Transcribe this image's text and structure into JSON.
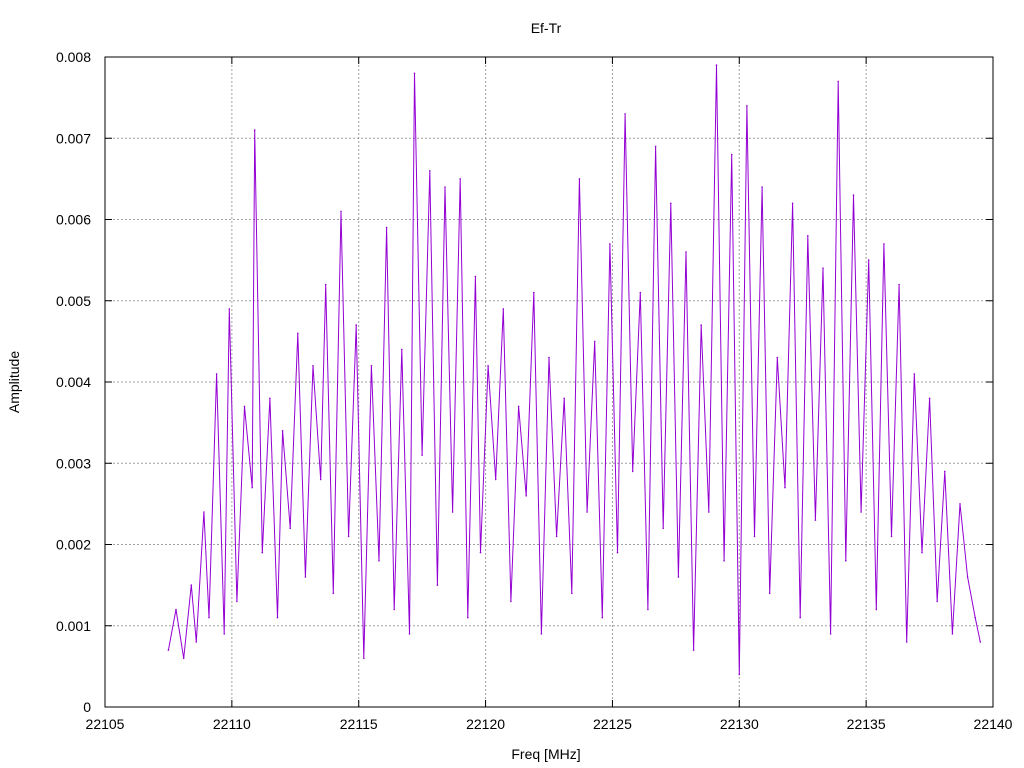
{
  "chart_data": {
    "type": "line",
    "title": "Ef-Tr",
    "xlabel": "Freq [MHz]",
    "ylabel": "Amplitude",
    "xlim": [
      22105,
      22140
    ],
    "ylim": [
      0,
      0.008
    ],
    "xticks": [
      22105,
      22110,
      22115,
      22120,
      22125,
      22130,
      22135,
      22140
    ],
    "xtick_labels": [
      "22105",
      "22110",
      "22115",
      "22120",
      "22125",
      "22130",
      "22135",
      "22140"
    ],
    "yticks": [
      0,
      0.001,
      0.002,
      0.003,
      0.004,
      0.005,
      0.006,
      0.007,
      0.008
    ],
    "ytick_labels": [
      "0",
      "0.001",
      "0.002",
      "0.003",
      "0.004",
      "0.005",
      "0.006",
      "0.007",
      "0.008"
    ],
    "grid": true,
    "legend": "none",
    "series": [
      {
        "color": "#9400d3",
        "x": [
          22107.5,
          22107.8,
          22108.1,
          22108.4,
          22108.6,
          22108.9,
          22109.1,
          22109.4,
          22109.7,
          22109.9,
          22110.2,
          22110.5,
          22110.8,
          22110.9,
          22111.2,
          22111.5,
          22111.8,
          22112.0,
          22112.3,
          22112.6,
          22112.9,
          22113.2,
          22113.5,
          22113.7,
          22114.0,
          22114.3,
          22114.6,
          22114.9,
          22115.2,
          22115.5,
          22115.8,
          22116.1,
          22116.4,
          22116.7,
          22117.0,
          22117.2,
          22117.5,
          22117.8,
          22118.1,
          22118.4,
          22118.7,
          22119.0,
          22119.3,
          22119.6,
          22119.8,
          22120.1,
          22120.4,
          22120.7,
          22121.0,
          22121.3,
          22121.6,
          22121.9,
          22122.2,
          22122.5,
          22122.8,
          22123.1,
          22123.4,
          22123.7,
          22124.0,
          22124.3,
          22124.6,
          22124.9,
          22125.2,
          22125.5,
          22125.8,
          22126.1,
          22126.4,
          22126.7,
          22127.0,
          22127.3,
          22127.6,
          22127.9,
          22128.2,
          22128.5,
          22128.8,
          22129.1,
          22129.4,
          22129.7,
          22130.0,
          22130.3,
          22130.6,
          22130.9,
          22131.2,
          22131.5,
          22131.8,
          22132.1,
          22132.4,
          22132.7,
          22133.0,
          22133.3,
          22133.6,
          22133.9,
          22134.2,
          22134.5,
          22134.8,
          22135.1,
          22135.4,
          22135.7,
          22136.0,
          22136.3,
          22136.6,
          22136.9,
          22137.2,
          22137.5,
          22137.8,
          22138.1,
          22138.4,
          22138.7,
          22139.0,
          22139.3,
          22139.5
        ],
        "values": [
          0.0007,
          0.0012,
          0.0006,
          0.0015,
          0.0008,
          0.0024,
          0.0011,
          0.0041,
          0.0009,
          0.0049,
          0.0013,
          0.0037,
          0.0027,
          0.0071,
          0.0019,
          0.0038,
          0.0011,
          0.0034,
          0.0022,
          0.0046,
          0.0016,
          0.0042,
          0.0028,
          0.0052,
          0.0014,
          0.0061,
          0.0021,
          0.0047,
          0.0006,
          0.0042,
          0.0018,
          0.0059,
          0.0012,
          0.0044,
          0.0009,
          0.0078,
          0.0031,
          0.0066,
          0.0015,
          0.0064,
          0.0024,
          0.0065,
          0.0011,
          0.0053,
          0.0019,
          0.0042,
          0.0028,
          0.0049,
          0.0013,
          0.0037,
          0.0026,
          0.0051,
          0.0009,
          0.0043,
          0.0021,
          0.0038,
          0.0014,
          0.0065,
          0.0024,
          0.0045,
          0.0011,
          0.0057,
          0.0019,
          0.0073,
          0.0029,
          0.0051,
          0.0012,
          0.0069,
          0.0022,
          0.0062,
          0.0016,
          0.0056,
          0.0007,
          0.0047,
          0.0024,
          0.0079,
          0.0018,
          0.0068,
          0.0004,
          0.0074,
          0.0021,
          0.0064,
          0.0014,
          0.0043,
          0.0027,
          0.0062,
          0.0011,
          0.0058,
          0.0023,
          0.0054,
          0.0009,
          0.0077,
          0.0018,
          0.0063,
          0.0024,
          0.0055,
          0.0012,
          0.0057,
          0.0021,
          0.0052,
          0.0008,
          0.0041,
          0.0019,
          0.0038,
          0.0013,
          0.0029,
          0.0009,
          0.0025,
          0.0016,
          0.0011,
          0.0008
        ]
      }
    ]
  }
}
